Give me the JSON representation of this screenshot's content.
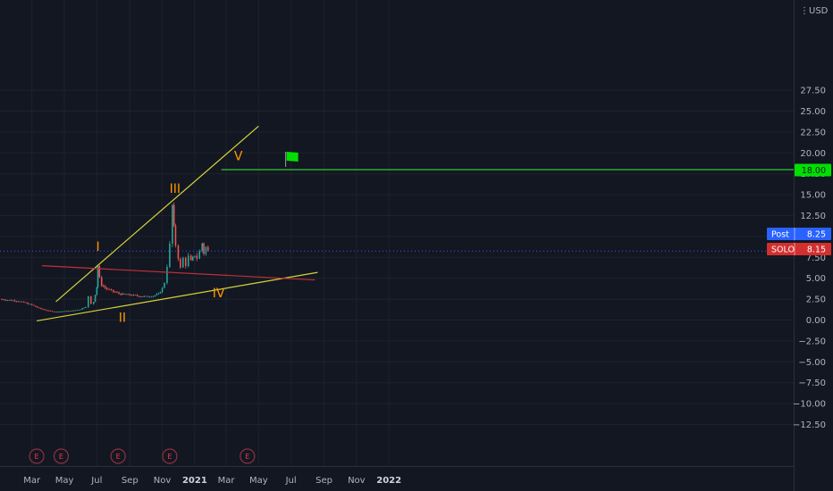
{
  "colors": {
    "background": "#131722",
    "grid": "#1e222d",
    "axis_text": "#b2b5be",
    "wave_label": "#ff9800",
    "trendline": "#d4d43a",
    "red_line": "#c0303a",
    "target_line": "#2fc82f",
    "flag": "#00e000",
    "up_candle": "#26a69a",
    "down_candle": "#ef5350",
    "post_tag": "#2962ff",
    "solo_tag": "#d32f2f"
  },
  "currency": "USD",
  "chart_data": {
    "type": "candlestick",
    "ticker": "SOLO",
    "x_labels": [
      "Mar",
      "May",
      "Jul",
      "Sep",
      "Nov",
      "2021",
      "Mar",
      "May",
      "Jul",
      "Sep",
      "Nov",
      "2022"
    ],
    "y_ticks": [
      27.5,
      25.0,
      22.5,
      20.0,
      17.5,
      15.0,
      12.5,
      10.0,
      7.5,
      5.0,
      2.5,
      0.0,
      -2.5,
      -5.0,
      -7.5,
      -10.0,
      -12.5
    ],
    "y_tick_labels": [
      "27.50",
      "25.00",
      "22.50",
      "20.00",
      "17.50",
      "15.00",
      "12.50",
      "10.00",
      "7.50",
      "5.00",
      "2.50",
      "0.00",
      "−2.50",
      "−5.00",
      "−7.50",
      "−10.00",
      "−12.50"
    ],
    "ylim": [
      -14.8,
      29.8
    ],
    "price_series": [
      [
        "2020-01-01",
        2.5
      ],
      [
        "2020-01-15",
        2.4
      ],
      [
        "2020-02-01",
        2.3
      ],
      [
        "2020-02-15",
        2.1
      ],
      [
        "2020-03-01",
        1.8
      ],
      [
        "2020-03-15",
        1.4
      ],
      [
        "2020-04-01",
        1.1
      ],
      [
        "2020-04-15",
        1.0
      ],
      [
        "2020-05-01",
        1.05
      ],
      [
        "2020-05-15",
        1.1
      ],
      [
        "2020-06-01",
        1.3
      ],
      [
        "2020-06-10",
        1.6
      ],
      [
        "2020-06-15",
        2.8
      ],
      [
        "2020-06-20",
        1.9
      ],
      [
        "2020-06-25",
        2.2
      ],
      [
        "2020-07-01",
        4.0
      ],
      [
        "2020-07-03",
        6.5
      ],
      [
        "2020-07-06",
        5.0
      ],
      [
        "2020-07-10",
        4.2
      ],
      [
        "2020-07-20",
        3.7
      ],
      [
        "2020-08-01",
        3.4
      ],
      [
        "2020-08-15",
        3.1
      ],
      [
        "2020-09-01",
        3.0
      ],
      [
        "2020-09-15",
        2.9
      ],
      [
        "2020-10-01",
        2.8
      ],
      [
        "2020-10-15",
        2.9
      ],
      [
        "2020-10-25",
        3.1
      ],
      [
        "2020-11-01",
        3.8
      ],
      [
        "2020-11-05",
        4.5
      ],
      [
        "2020-11-10",
        6.5
      ],
      [
        "2020-11-15",
        9.0
      ],
      [
        "2020-11-20",
        13.7
      ],
      [
        "2020-11-23",
        11.0
      ],
      [
        "2020-11-26",
        9.0
      ],
      [
        "2020-12-01",
        7.5
      ],
      [
        "2020-12-05",
        6.2
      ],
      [
        "2020-12-10",
        7.4
      ],
      [
        "2020-12-15",
        6.6
      ],
      [
        "2020-12-20",
        7.6
      ],
      [
        "2020-12-25",
        7.0
      ],
      [
        "2021-01-01",
        7.8
      ],
      [
        "2021-01-05",
        7.4
      ],
      [
        "2021-01-10",
        8.2
      ],
      [
        "2021-01-15",
        9.2
      ],
      [
        "2021-01-18",
        8.0
      ],
      [
        "2021-01-22",
        8.7
      ],
      [
        "2021-01-26",
        8.15
      ]
    ],
    "lines": [
      {
        "name": "upper-trendline",
        "from": [
          "2020-04-15",
          2.2
        ],
        "to": [
          "2021-05-01",
          23.2
        ]
      },
      {
        "name": "lower-trendline",
        "from": [
          "2020-03-10",
          -0.1
        ],
        "to": [
          "2021-08-20",
          5.7
        ]
      },
      {
        "name": "red-line",
        "from": [
          "2020-03-20",
          6.5
        ],
        "to": [
          "2021-08-15",
          4.8
        ]
      },
      {
        "name": "target-line",
        "from": [
          "2021-02-20",
          18.0
        ],
        "to": [
          "2022-06-01",
          18.0
        ]
      }
    ],
    "wave_labels": [
      {
        "text": "I",
        "x": "2020-07-03",
        "y": 8.3
      },
      {
        "text": "II",
        "x": "2020-08-18",
        "y": -0.2
      },
      {
        "text": "III",
        "x": "2020-11-25",
        "y": 15.2
      },
      {
        "text": "IV",
        "x": "2021-02-15",
        "y": 2.7
      },
      {
        "text": "V",
        "x": "2021-03-24",
        "y": 19.1
      }
    ],
    "flag": {
      "x": "2021-07-01",
      "y": 19.5
    },
    "earnings_markers": {
      "label": "E",
      "dates": [
        "2020-03-10",
        "2020-04-25",
        "2020-08-10",
        "2020-11-15",
        "2021-04-10"
      ]
    },
    "price_tags": [
      {
        "label": "",
        "value": "18.00",
        "y": 18.0,
        "style": "target"
      },
      {
        "label": "Post",
        "value": "8.25",
        "y": 8.25,
        "style": "post"
      },
      {
        "label": "SOLO",
        "value": "8.15",
        "y": 8.15,
        "style": "solo"
      }
    ]
  }
}
